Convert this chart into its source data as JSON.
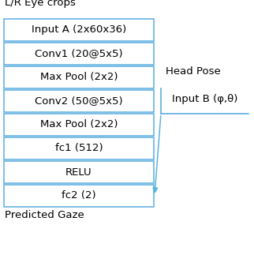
{
  "title_top": "L/R Eye crops",
  "title_bottom": "Predicted Gaze",
  "head_pose_label": "Head Pose",
  "input_b_label": "Input B (φ,θ)",
  "boxes": [
    "Input A (2x60x36)",
    "Conv1 (20@5x5)",
    "Max Pool (2x2)",
    "Conv2 (50@5x5)",
    "Max Pool (2x2)",
    "fc1 (512)",
    "RELU",
    "fc2 (2)"
  ],
  "box_color": "#5aade0",
  "box_face": "white",
  "font_size": 9.5,
  "arrow_color": "#5ab4dc",
  "bg_color": "white"
}
